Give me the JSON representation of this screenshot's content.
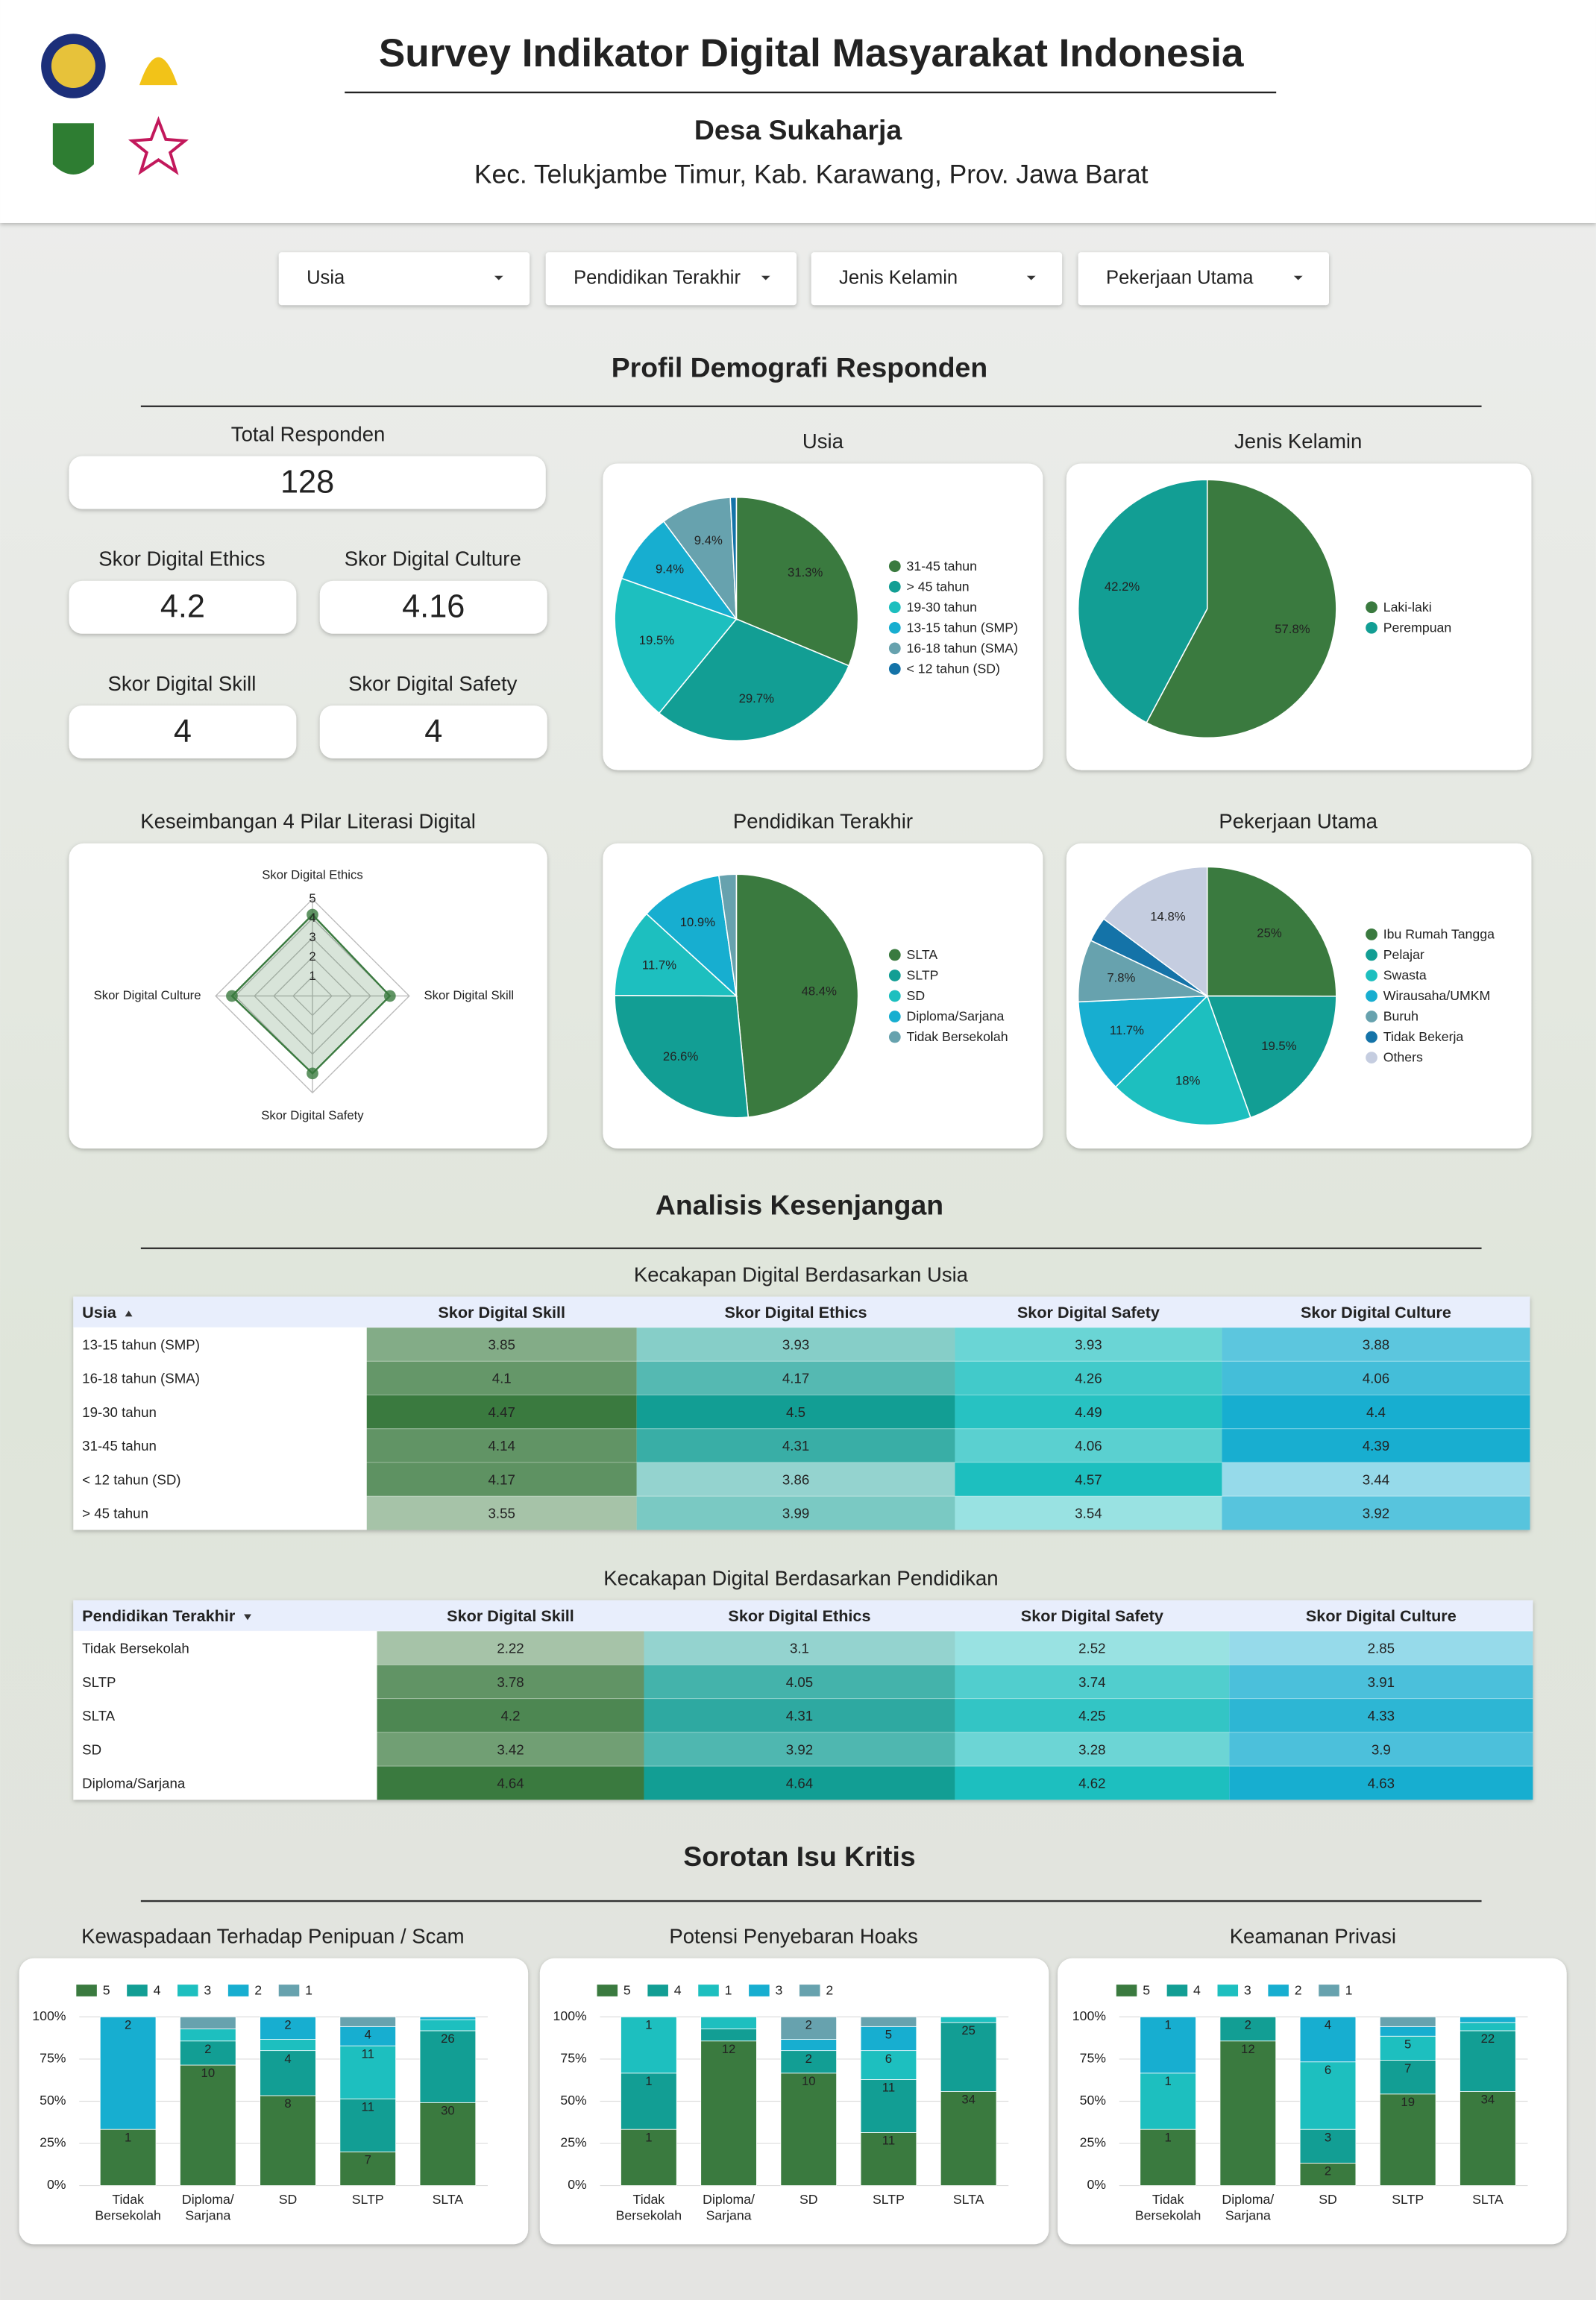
{
  "header": {
    "title": "Survey Indikator Digital Masyarakat Indonesia",
    "village": "Desa Sukaharja",
    "location": "Kec. Telukjambe Timur, Kab. Karawang, Prov. Jawa Barat"
  },
  "filters": [
    "Usia",
    "Pendidikan Terakhir",
    "Jenis Kelamin",
    "Pekerjaan Utama"
  ],
  "sections": [
    "Profil Demografi Responden",
    "Analisis Kesenjangan",
    "Sorotan Isu Kritis"
  ],
  "scorecards": [
    {
      "label": "Total Responden",
      "value": 128
    },
    {
      "label": "Skor Digital Ethics",
      "value": 4.2
    },
    {
      "label": "Skor Digital Culture",
      "value": 4.16
    },
    {
      "label": "Skor Digital Skill",
      "value": 4
    },
    {
      "label": "Skor Digital Safety",
      "value": 4
    }
  ],
  "tables": [
    {
      "title": "Kecakapan Digital Berdasarkan Usia",
      "columns": [
        "Usia",
        "Skor Digital Skill",
        "Skor Digital Ethics",
        "Skor Digital Safety",
        "Skor Digital Culture"
      ],
      "column_colors": [
        "#3a7a3f",
        "#129e94",
        "#1dbfbf",
        "#17aed0"
      ],
      "rows": [
        [
          "13-15 tahun (SMP)",
          3.85,
          3.93,
          3.93,
          3.88
        ],
        [
          "16-18 tahun (SMA)",
          4.1,
          4.17,
          4.26,
          4.06
        ],
        [
          "19-30 tahun",
          4.47,
          4.5,
          4.49,
          4.4
        ],
        [
          "31-45 tahun",
          4.14,
          4.31,
          4.06,
          4.39
        ],
        [
          "< 12 tahun (SD)",
          4.17,
          3.86,
          4.57,
          3.44
        ],
        [
          "> 45 tahun",
          3.55,
          3.99,
          3.54,
          3.92
        ]
      ]
    },
    {
      "title": "Kecakapan Digital Berdasarkan Pendidikan",
      "columns": [
        "Pendidikan Terakhir",
        "Skor Digital Skill",
        "Skor Digital Ethics",
        "Skor Digital Safety",
        "Skor Digital Culture"
      ],
      "column_colors": [
        "#3a7a3f",
        "#129e94",
        "#1dbfbf",
        "#17aed0"
      ],
      "rows": [
        [
          "Tidak Bersekolah",
          2.22,
          3.1,
          2.52,
          2.85
        ],
        [
          "SLTP",
          3.78,
          4.05,
          3.74,
          3.91
        ],
        [
          "SLTA",
          4.2,
          4.31,
          4.25,
          4.33
        ],
        [
          "SD",
          3.42,
          3.92,
          3.28,
          3.9
        ],
        [
          "Diploma/Sarjana",
          4.64,
          4.64,
          4.62,
          4.63
        ]
      ]
    }
  ],
  "chart_data": [
    {
      "type": "pie",
      "title": "Usia",
      "categories": [
        "31-45 tahun",
        "> 45 tahun",
        "19-30 tahun",
        "13-15 tahun (SMP)",
        "16-18 tahun (SMA)",
        "< 12 tahun (SD)"
      ],
      "values": [
        31.3,
        29.7,
        19.5,
        9.4,
        9.4,
        0.8
      ],
      "value_labels": [
        "31.3%",
        "29.7%",
        "19.5%",
        "9.4%",
        "9.4%",
        null
      ],
      "colors": [
        "#3a7a3f",
        "#129e94",
        "#1dbfbf",
        "#17aed0",
        "#67a2ae",
        "#1473a8"
      ]
    },
    {
      "type": "pie",
      "title": "Jenis Kelamin",
      "categories": [
        "Laki-laki",
        "Perempuan"
      ],
      "values": [
        57.8,
        42.2
      ],
      "value_labels": [
        "57.8%",
        "42.2%"
      ],
      "colors": [
        "#3a7a3f",
        "#129e94"
      ]
    },
    {
      "type": "radar",
      "title": "Keseimbangan 4 Pilar Literasi Digital",
      "categories": [
        "Skor Digital Ethics",
        "Skor Digital Skill",
        "Skor Digital Safety",
        "Skor Digital Culture"
      ],
      "values": [
        4.2,
        4,
        4,
        4.16
      ],
      "rlim": [
        0,
        5
      ],
      "rticks": [
        1,
        2,
        3,
        4,
        5
      ],
      "color": "#3a7a3f"
    },
    {
      "type": "pie",
      "title": "Pendidikan Terakhir",
      "categories": [
        "SLTA",
        "SLTP",
        "SD",
        "Diploma/Sarjana",
        "Tidak Bersekolah"
      ],
      "values": [
        48.4,
        26.6,
        11.7,
        10.9,
        2.3
      ],
      "value_labels": [
        "48.4%",
        "26.6%",
        "11.7%",
        "10.9%",
        null
      ],
      "colors": [
        "#3a7a3f",
        "#129e94",
        "#1dbfbf",
        "#17aed0",
        "#67a2ae"
      ]
    },
    {
      "type": "pie",
      "title": "Pekerjaan Utama",
      "categories": [
        "Ibu Rumah Tangga",
        "Pelajar",
        "Swasta",
        "Wirausaha/UMKM",
        "Buruh",
        "Tidak Bekerja",
        "Others"
      ],
      "values": [
        25,
        19.5,
        18,
        11.7,
        7.8,
        3.1,
        14.8
      ],
      "value_labels": [
        "25%",
        "19.5%",
        "18%",
        "11.7%",
        "7.8%",
        null,
        "14.8%"
      ],
      "colors": [
        "#3a7a3f",
        "#129e94",
        "#1dbfbf",
        "#17aed0",
        "#67a2ae",
        "#1473a8",
        "#c5cde0"
      ]
    },
    {
      "type": "bar",
      "stacked": "percent",
      "title": "Kewaspadaan Terhadap Penipuan / Scam",
      "categories": [
        [
          "Tidak",
          "Bersekolah"
        ],
        [
          "Diploma/",
          "Sarjana"
        ],
        [
          "SD"
        ],
        [
          "SLTP"
        ],
        [
          "SLTA"
        ]
      ],
      "series": [
        {
          "name": "5",
          "color": "#3a7a3f",
          "values": [
            1,
            10,
            8,
            7,
            30
          ]
        },
        {
          "name": "4",
          "color": "#129e94",
          "values": [
            null,
            2,
            4,
            11,
            26
          ]
        },
        {
          "name": "3",
          "color": "#1dbfbf",
          "values": [
            null,
            1,
            1,
            11,
            4
          ]
        },
        {
          "name": "2",
          "color": "#17aed0",
          "values": [
            2,
            null,
            2,
            4,
            1
          ]
        },
        {
          "name": "1",
          "color": "#67a2ae",
          "values": [
            null,
            1,
            null,
            2,
            null
          ]
        }
      ],
      "ylim": [
        0,
        100
      ],
      "yticks": [
        {
          "value": 0,
          "label": "0%"
        },
        {
          "value": 25,
          "label": "25%"
        },
        {
          "value": 50,
          "label": "50%"
        },
        {
          "value": 75,
          "label": "75%"
        },
        {
          "value": 100,
          "label": "100%"
        }
      ]
    },
    {
      "type": "bar",
      "stacked": "percent",
      "title": "Potensi Penyebaran Hoaks",
      "categories": [
        [
          "Tidak",
          "Bersekolah"
        ],
        [
          "Diploma/",
          "Sarjana"
        ],
        [
          "SD"
        ],
        [
          "SLTP"
        ],
        [
          "SLTA"
        ]
      ],
      "series": [
        {
          "name": "5",
          "color": "#3a7a3f",
          "values": [
            1,
            12,
            10,
            11,
            34
          ]
        },
        {
          "name": "4",
          "color": "#129e94",
          "values": [
            1,
            1,
            2,
            11,
            25
          ]
        },
        {
          "name": "1",
          "color": "#1dbfbf",
          "values": [
            1,
            1,
            null,
            6,
            2
          ]
        },
        {
          "name": "3",
          "color": "#17aed0",
          "values": [
            null,
            null,
            1,
            5,
            null
          ]
        },
        {
          "name": "2",
          "color": "#67a2ae",
          "values": [
            null,
            null,
            2,
            2,
            null
          ]
        }
      ],
      "ylim": [
        0,
        100
      ],
      "yticks": [
        {
          "value": 0,
          "label": "0%"
        },
        {
          "value": 25,
          "label": "25%"
        },
        {
          "value": 50,
          "label": "50%"
        },
        {
          "value": 75,
          "label": "75%"
        },
        {
          "value": 100,
          "label": "100%"
        }
      ]
    },
    {
      "type": "bar",
      "stacked": "percent",
      "title": "Keamanan Privasi",
      "categories": [
        [
          "Tidak",
          "Bersekolah"
        ],
        [
          "Diploma/",
          "Sarjana"
        ],
        [
          "SD"
        ],
        [
          "SLTP"
        ],
        [
          "SLTA"
        ]
      ],
      "series": [
        {
          "name": "5",
          "color": "#3a7a3f",
          "values": [
            1,
            12,
            2,
            19,
            34
          ]
        },
        {
          "name": "4",
          "color": "#129e94",
          "values": [
            null,
            2,
            3,
            7,
            22
          ]
        },
        {
          "name": "3",
          "color": "#1dbfbf",
          "values": [
            1,
            null,
            6,
            5,
            3
          ]
        },
        {
          "name": "2",
          "color": "#17aed0",
          "values": [
            1,
            null,
            4,
            2,
            2
          ]
        },
        {
          "name": "1",
          "color": "#67a2ae",
          "values": [
            null,
            null,
            null,
            2,
            null
          ]
        }
      ],
      "ylim": [
        0,
        100
      ],
      "yticks": [
        {
          "value": 0,
          "label": "0%"
        },
        {
          "value": 25,
          "label": "25%"
        },
        {
          "value": 50,
          "label": "50%"
        },
        {
          "value": 75,
          "label": "75%"
        },
        {
          "value": 100,
          "label": "100%"
        }
      ]
    }
  ]
}
